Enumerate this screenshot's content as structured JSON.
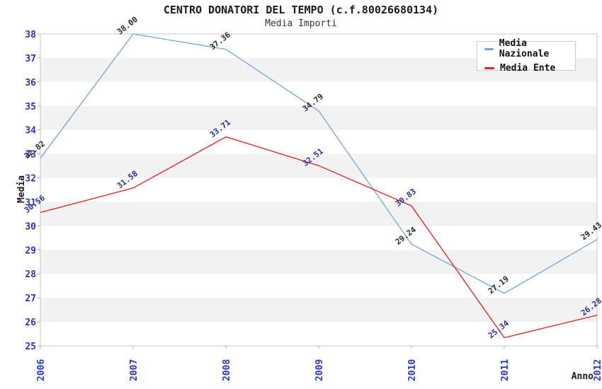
{
  "header": {
    "title": "CENTRO DONATORI DEL TEMPO (c.f.80026680134)",
    "subtitle": "Media Importi"
  },
  "chart_data": {
    "type": "line",
    "title": "CENTRO DONATORI DEL TEMPO (c.f.80026680134)",
    "subtitle": "Media Importi",
    "xlabel": "Anno",
    "ylabel": "Media",
    "categories": [
      "2006",
      "2007",
      "2008",
      "2009",
      "2010",
      "2011",
      "2012"
    ],
    "series": [
      {
        "name": "Media Nazionale",
        "color": "#74a5dc",
        "label_color": "#2a2a2a",
        "values": [
          32.82,
          38.0,
          37.36,
          34.79,
          29.24,
          27.19,
          29.43
        ]
      },
      {
        "name": "Media Ente",
        "color": "#e81e1e",
        "label_color": "#2b2f94",
        "values": [
          30.56,
          31.58,
          33.71,
          32.51,
          30.83,
          25.34,
          26.28
        ]
      }
    ],
    "ylim": [
      25,
      38
    ],
    "ytick_step": 1,
    "grid": "alternating-horizontal-bands",
    "band_colors": [
      "#ffffff",
      "#f2f2f2"
    ],
    "tick_label_color": "#2b35c3",
    "axis_color": "#9fb0c8",
    "plot_border_color": "#bcc5d4",
    "legend_position": "top-right"
  }
}
